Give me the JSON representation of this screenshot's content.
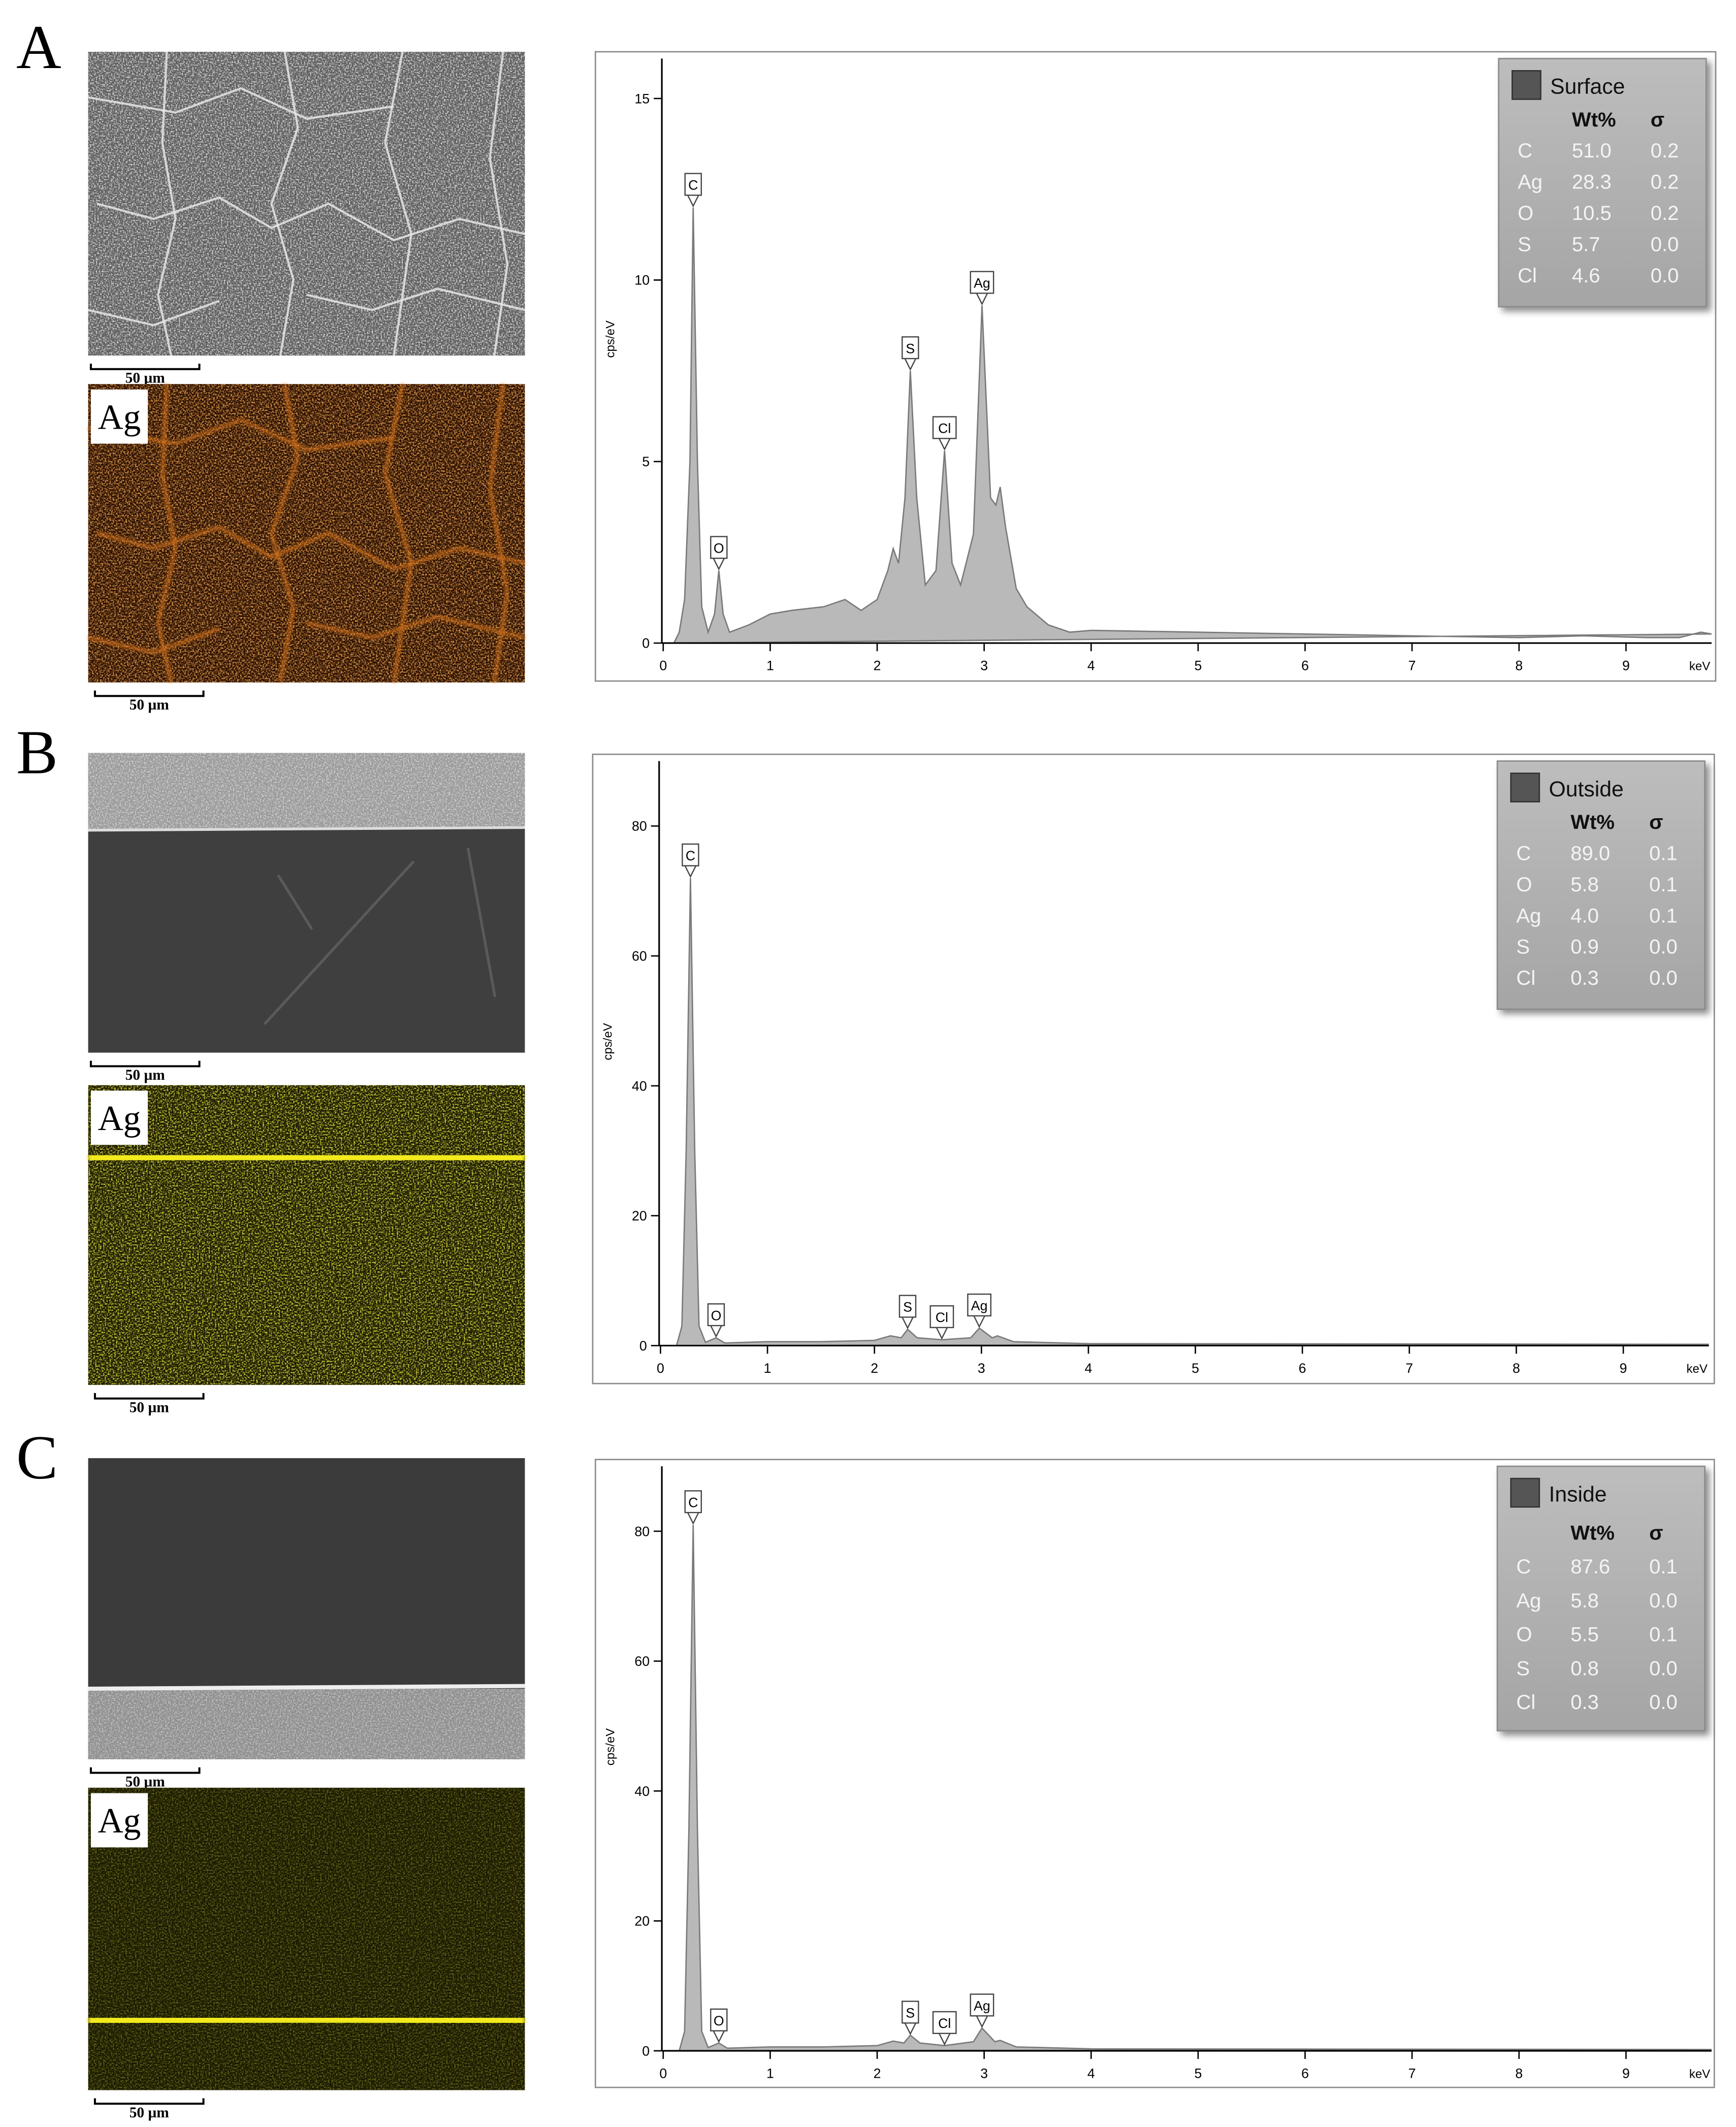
{
  "panels": [
    {
      "label": "A",
      "sem_scale": "50 µm",
      "map_label": "Ag",
      "map_scale": "50 µm"
    },
    {
      "label": "B",
      "sem_scale": "50 µm",
      "map_label": "Ag",
      "map_scale": "50 µm"
    },
    {
      "label": "C",
      "sem_scale": "50 µm",
      "map_label": "Ag",
      "map_scale": "50 µm"
    }
  ],
  "chart_data": [
    {
      "type": "area",
      "y_label": "cps/eV",
      "x_label": "keV",
      "x": [
        0,
        0.1,
        0.15,
        0.2,
        0.25,
        0.28,
        0.32,
        0.36,
        0.42,
        0.48,
        0.52,
        0.56,
        0.62,
        0.8,
        1.0,
        1.2,
        1.5,
        1.7,
        1.85,
        2.0,
        2.1,
        2.15,
        2.2,
        2.26,
        2.31,
        2.37,
        2.45,
        2.55,
        2.63,
        2.7,
        2.78,
        2.9,
        2.98,
        3.06,
        3.11,
        3.15,
        3.2,
        3.3,
        3.4,
        3.6,
        3.8,
        4.0,
        5.0,
        6.0,
        7.0,
        8.0,
        8.6,
        9.2,
        9.5,
        9.7,
        9.8
      ],
      "series": [
        {
          "name": "Surface",
          "color": "#b9b9b9",
          "values": [
            0,
            0,
            0.3,
            1.2,
            5,
            12,
            5,
            1,
            0.3,
            0.8,
            2,
            0.8,
            0.3,
            0.5,
            0.8,
            0.9,
            1,
            1.2,
            0.9,
            1.2,
            2,
            2.6,
            2.2,
            4,
            7.5,
            4,
            1.6,
            2,
            5.3,
            2.2,
            1.6,
            3,
            9.3,
            4,
            3.8,
            4.3,
            3.2,
            1.5,
            1,
            0.5,
            0.3,
            0.35,
            0.3,
            0.25,
            0.2,
            0.15,
            0.2,
            0.15,
            0.15,
            0.3,
            0.25
          ]
        }
      ],
      "annotations": [
        {
          "text": "C",
          "x": 0.28,
          "y": 12
        },
        {
          "text": "O",
          "x": 0.52,
          "y": 2
        },
        {
          "text": "S",
          "x": 2.31,
          "y": 7.5
        },
        {
          "text": "Cl",
          "x": 2.63,
          "y": 5.3
        },
        {
          "text": "Ag",
          "x": 2.98,
          "y": 9.3
        }
      ],
      "legend_table": {
        "header": [
          "Wt%",
          "σ"
        ],
        "rows": [
          [
            "C",
            "51.0",
            "0.2"
          ],
          [
            "Ag",
            "28.3",
            "0.2"
          ],
          [
            "O",
            "10.5",
            "0.2"
          ],
          [
            "S",
            "5.7",
            "0.0"
          ],
          [
            "Cl",
            "4.6",
            "0.0"
          ]
        ]
      },
      "xlim": [
        0,
        9.8
      ],
      "ylim": [
        0,
        16.1
      ],
      "xticks": [
        0,
        1,
        2,
        3,
        4,
        5,
        6,
        7,
        8,
        9
      ],
      "yticks": [
        0,
        5,
        10,
        15
      ]
    },
    {
      "type": "area",
      "y_label": "cps/eV",
      "x_label": "keV",
      "x": [
        0,
        0.15,
        0.2,
        0.24,
        0.28,
        0.32,
        0.36,
        0.42,
        0.52,
        0.6,
        1.0,
        1.5,
        2.0,
        2.15,
        2.25,
        2.31,
        2.4,
        2.63,
        2.9,
        2.98,
        3.1,
        3.15,
        3.3,
        4.0,
        9.8
      ],
      "series": [
        {
          "name": "Outside",
          "color": "#b9b9b9",
          "values": [
            0,
            0,
            3,
            30,
            72,
            30,
            3,
            0.5,
            1.2,
            0.4,
            0.6,
            0.6,
            0.8,
            1.5,
            1.2,
            2.5,
            1.2,
            0.9,
            1.2,
            2.7,
            1.2,
            1.5,
            0.6,
            0.3,
            0.2
          ]
        }
      ],
      "annotations": [
        {
          "text": "C",
          "x": 0.28,
          "y": 72
        },
        {
          "text": "O",
          "x": 0.52,
          "y": 1.2
        },
        {
          "text": "S",
          "x": 2.31,
          "y": 2.5
        },
        {
          "text": "Cl",
          "x": 2.63,
          "y": 0.9
        },
        {
          "text": "Ag",
          "x": 2.98,
          "y": 2.7
        }
      ],
      "legend_table": {
        "header": [
          "Wt%",
          "σ"
        ],
        "rows": [
          [
            "C",
            "89.0",
            "0.1"
          ],
          [
            "O",
            "5.8",
            "0.1"
          ],
          [
            "Ag",
            "4.0",
            "0.1"
          ],
          [
            "S",
            "0.9",
            "0.0"
          ],
          [
            "Cl",
            "0.3",
            "0.0"
          ]
        ]
      },
      "xlim": [
        0,
        9.8
      ],
      "ylim": [
        0,
        90
      ],
      "xticks": [
        0,
        1,
        2,
        3,
        4,
        5,
        6,
        7,
        8,
        9
      ],
      "yticks": [
        0,
        20,
        40,
        60,
        80
      ]
    },
    {
      "type": "area",
      "y_label": "cps/eV",
      "x_label": "keV",
      "x": [
        0,
        0.15,
        0.2,
        0.24,
        0.28,
        0.32,
        0.36,
        0.42,
        0.52,
        0.6,
        1.0,
        1.5,
        2.0,
        2.15,
        2.25,
        2.31,
        2.4,
        2.63,
        2.9,
        2.98,
        3.1,
        3.15,
        3.3,
        4.0,
        9.8
      ],
      "series": [
        {
          "name": "Inside",
          "color": "#b9b9b9",
          "values": [
            0,
            0,
            3,
            34,
            81,
            34,
            3,
            0.5,
            1.2,
            0.4,
            0.6,
            0.6,
            0.8,
            1.5,
            1.2,
            2.4,
            1.2,
            0.8,
            1.4,
            3.5,
            1.4,
            1.6,
            0.6,
            0.3,
            0.2
          ]
        }
      ],
      "annotations": [
        {
          "text": "C",
          "x": 0.28,
          "y": 81
        },
        {
          "text": "O",
          "x": 0.52,
          "y": 1.2
        },
        {
          "text": "S",
          "x": 2.31,
          "y": 2.4
        },
        {
          "text": "Cl",
          "x": 2.63,
          "y": 0.8
        },
        {
          "text": "Ag",
          "x": 2.98,
          "y": 3.5
        }
      ],
      "legend_table": {
        "header": [
          "Wt%",
          "σ"
        ],
        "rows": [
          [
            "C",
            "87.6",
            "0.1"
          ],
          [
            "Ag",
            "5.8",
            "0.0"
          ],
          [
            "O",
            "5.5",
            "0.1"
          ],
          [
            "S",
            "0.8",
            "0.0"
          ],
          [
            "Cl",
            "0.3",
            "0.0"
          ]
        ]
      },
      "xlim": [
        0,
        9.8
      ],
      "ylim": [
        0,
        90
      ],
      "xticks": [
        0,
        1,
        2,
        3,
        4,
        5,
        6,
        7,
        8,
        9
      ],
      "yticks": [
        0,
        20,
        40,
        60,
        80
      ]
    }
  ]
}
